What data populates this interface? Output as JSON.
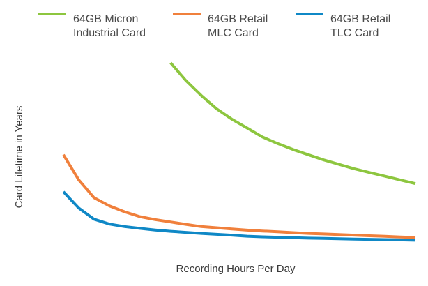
{
  "chart_data": {
    "type": "line",
    "title": "",
    "xlabel": "Recording Hours Per Day",
    "ylabel": "Card Lifetime in Years",
    "x": [
      1,
      2,
      3,
      4,
      5,
      6,
      7,
      8,
      9,
      10,
      11,
      12,
      13,
      14,
      15,
      16,
      17,
      18,
      19,
      20,
      21,
      22,
      23,
      24
    ],
    "xlim": [
      1,
      24
    ],
    "ylim": [
      0,
      12
    ],
    "grid": false,
    "legend_position": "top",
    "series": [
      {
        "name_lines": [
          "64GB Micron",
          "Industrial Card"
        ],
        "color": "#8DC63F",
        "x": [
          8,
          9,
          10,
          11,
          12,
          13,
          14,
          15,
          16,
          17,
          18,
          19,
          20,
          21,
          22,
          23,
          24
        ],
        "values": [
          12.0,
          10.8,
          9.8,
          8.9,
          8.2,
          7.6,
          7.0,
          6.55,
          6.15,
          5.8,
          5.45,
          5.15,
          4.85,
          4.6,
          4.35,
          4.1,
          3.85
        ]
      },
      {
        "name_lines": [
          "64GB Retail",
          "MLC Card"
        ],
        "color": "#F0803C",
        "x": [
          1,
          2,
          3,
          4,
          5,
          6,
          7,
          8,
          9,
          10,
          11,
          12,
          13,
          14,
          15,
          16,
          17,
          18,
          19,
          20,
          21,
          22,
          23,
          24
        ],
        "values": [
          5.8,
          4.1,
          2.9,
          2.35,
          1.95,
          1.62,
          1.42,
          1.26,
          1.1,
          0.95,
          0.87,
          0.79,
          0.71,
          0.65,
          0.6,
          0.54,
          0.49,
          0.45,
          0.41,
          0.37,
          0.33,
          0.29,
          0.25,
          0.21
        ]
      },
      {
        "name_lines": [
          "64GB Retail",
          "TLC Card"
        ],
        "color": "#0F88C6",
        "x": [
          1,
          2,
          3,
          4,
          5,
          6,
          7,
          8,
          9,
          10,
          11,
          12,
          13,
          14,
          15,
          16,
          17,
          18,
          19,
          20,
          21,
          22,
          23,
          24
        ],
        "values": [
          3.3,
          2.2,
          1.45,
          1.12,
          0.95,
          0.83,
          0.72,
          0.63,
          0.56,
          0.49,
          0.43,
          0.37,
          0.3,
          0.26,
          0.23,
          0.2,
          0.17,
          0.15,
          0.13,
          0.11,
          0.09,
          0.07,
          0.05,
          0.03
        ]
      }
    ]
  }
}
